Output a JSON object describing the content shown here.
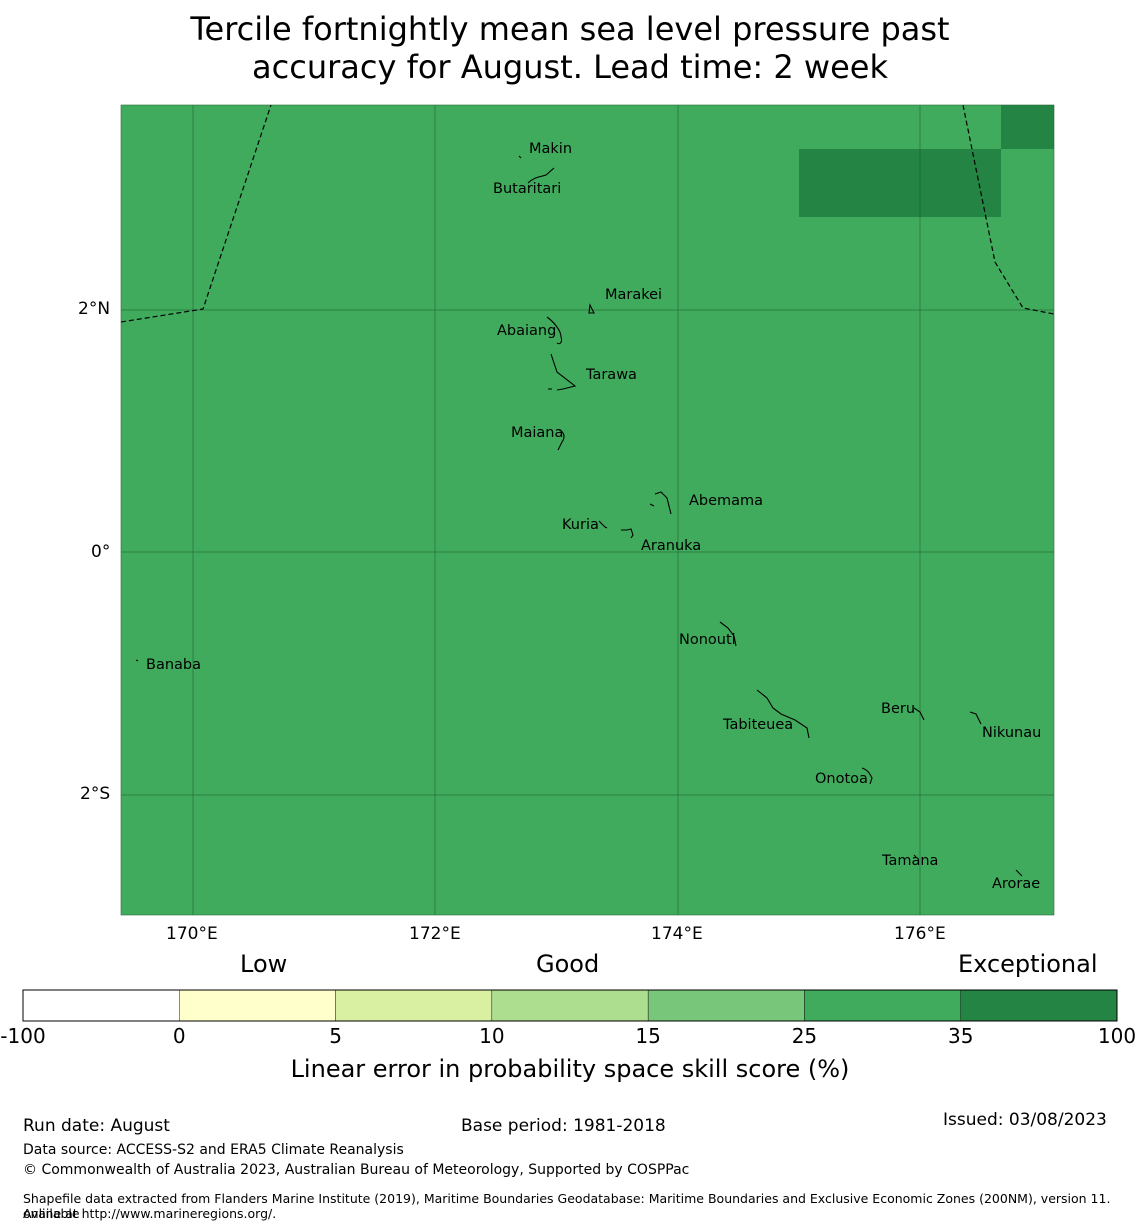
{
  "title": "Tercile fortnightly mean sea level pressure past\naccuracy for August. Lead time: 2 week",
  "map": {
    "background_color": "#41ab5d",
    "high_skill_color": "#238443",
    "lon_ticks": [
      "170°E",
      "172°E",
      "174°E",
      "176°E"
    ],
    "lat_ticks": [
      "2°N",
      "0°",
      "2°S"
    ],
    "islands": [
      {
        "name": "Makin"
      },
      {
        "name": "Butaritari"
      },
      {
        "name": "Marakei"
      },
      {
        "name": "Abaiang"
      },
      {
        "name": "Tarawa"
      },
      {
        "name": "Maiana"
      },
      {
        "name": "Abemama"
      },
      {
        "name": "Kuria"
      },
      {
        "name": "Aranuka"
      },
      {
        "name": "Nonouti"
      },
      {
        "name": "Banaba"
      },
      {
        "name": "Tabiteuea"
      },
      {
        "name": "Beru"
      },
      {
        "name": "Nikunau"
      },
      {
        "name": "Onotoa"
      },
      {
        "name": "Tamana"
      },
      {
        "name": "Arorae"
      }
    ]
  },
  "colorbar": {
    "categories": {
      "low": "Low",
      "good": "Good",
      "exceptional": "Exceptional"
    },
    "bins": [
      {
        "from": "-100",
        "to": "0",
        "color": "#ffffff"
      },
      {
        "from": "0",
        "to": "5",
        "color": "#ffffcc"
      },
      {
        "from": "5",
        "to": "10",
        "color": "#d9f0a3"
      },
      {
        "from": "10",
        "to": "15",
        "color": "#addd8e"
      },
      {
        "from": "15",
        "to": "25",
        "color": "#78c679"
      },
      {
        "from": "25",
        "to": "35",
        "color": "#41ab5d"
      },
      {
        "from": "35",
        "to": "100",
        "color": "#238443"
      }
    ],
    "ticks": [
      "-100",
      "0",
      "5",
      "10",
      "15",
      "25",
      "35",
      "100"
    ],
    "label": "Linear error in probability space skill score (%)"
  },
  "footer": {
    "run_date": "Run date: August",
    "base_period": "Base period: 1981-2018",
    "issued": "Issued: 03/08/2023",
    "data_source": "Data source: ACCESS-S2 and ERA5 Climate Reanalysis",
    "copyright": "© Commonwealth of Australia 2023, Australian Bureau of Meteorology, Supported by COSPPac",
    "shapefile_line1": "Shapefile data extracted from Flanders Marine Institute (2019), Maritime Boundaries Geodatabase: Maritime Boundaries and Exclusive Economic Zones (200NM), version 11. Available",
    "shapefile_line2": "online at http://www.marineregions.org/."
  }
}
